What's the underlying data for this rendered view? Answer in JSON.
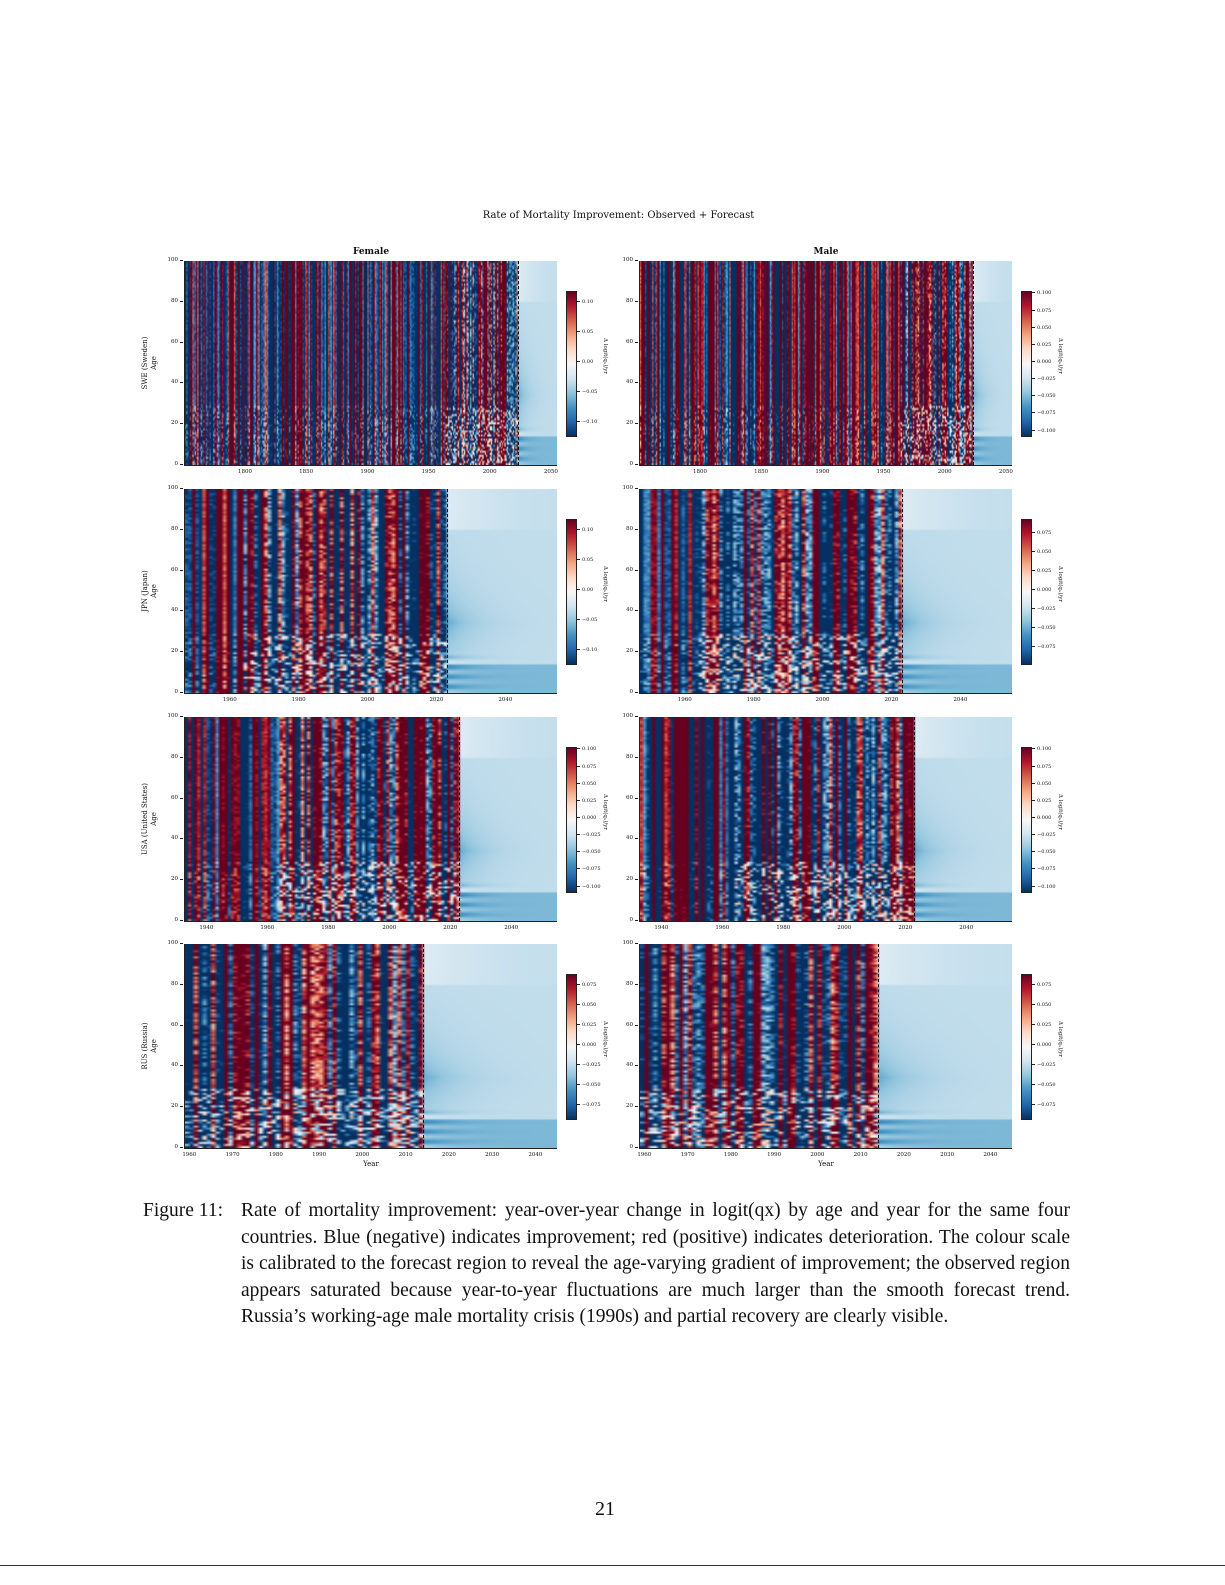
{
  "figure": {
    "suptitle": "Rate of Mortality Improvement: Observed + Forecast",
    "column_titles": [
      "Female",
      "Male"
    ],
    "x_axis_label": "Year",
    "colorbar_label": "Δ logit(qₓ)/yr"
  },
  "caption": {
    "label": "Figure 11:",
    "text": "Rate of mortality improvement: year-over-year change in logit(qx) by age and year for the same four countries. Blue (negative) indicates improvement; red (positive) indicates deterioration. The colour scale is calibrated to the forecast region to reveal the age-varying gradient of improvement; the observed region appears saturated because year-to-year fluctuations are much larger than the smooth forecast trend. Russia’s working-age male mortality crisis (1990s) and partial recovery are clearly visible."
  },
  "page_number": "21",
  "chart_data": [
    {
      "type": "heatmap",
      "row": "SWE (Sweden)",
      "sex": "Female",
      "ylabel": "SWE (Sweden)\nAge",
      "xlabel": "",
      "x_range": [
        1751,
        2055
      ],
      "y_range": [
        0,
        100
      ],
      "x_ticks": [
        1800,
        1850,
        1900,
        1950,
        2000,
        2050
      ],
      "y_ticks": [
        0,
        20,
        40,
        60,
        80,
        100
      ],
      "forecast_start": 2023,
      "colorbar_ticks": [
        "0.10",
        "0.05",
        "0.00",
        "−0.05",
        "−0.10"
      ],
      "colorbar_range": [
        -0.12,
        0.12
      ],
      "colormap": "RdBu_r"
    },
    {
      "type": "heatmap",
      "row": "SWE (Sweden)",
      "sex": "Male",
      "ylabel": "",
      "xlabel": "",
      "x_range": [
        1751,
        2055
      ],
      "y_range": [
        0,
        100
      ],
      "x_ticks": [
        1800,
        1850,
        1900,
        1950,
        2000,
        2050
      ],
      "y_ticks": [
        0,
        20,
        40,
        60,
        80,
        100
      ],
      "forecast_start": 2023,
      "colorbar_ticks": [
        "0.100",
        "0.075",
        "0.050",
        "0.025",
        "0.000",
        "−0.025",
        "−0.050",
        "−0.075",
        "−0.100"
      ],
      "colorbar_range": [
        -0.105,
        0.105
      ],
      "colormap": "RdBu_r"
    },
    {
      "type": "heatmap",
      "row": "JPN (Japan)",
      "sex": "Female",
      "ylabel": "JPN (Japan)\nAge",
      "xlabel": "",
      "x_range": [
        1947,
        2055
      ],
      "y_range": [
        0,
        100
      ],
      "x_ticks": [
        1960,
        1980,
        2000,
        2020,
        2040
      ],
      "y_ticks": [
        0,
        20,
        40,
        60,
        80,
        100
      ],
      "forecast_start": 2023,
      "colorbar_ticks": [
        "0.10",
        "0.05",
        "0.00",
        "−0.05",
        "−0.10"
      ],
      "colorbar_range": [
        -0.12,
        0.12
      ],
      "colormap": "RdBu_r"
    },
    {
      "type": "heatmap",
      "row": "JPN (Japan)",
      "sex": "Male",
      "ylabel": "",
      "xlabel": "",
      "x_range": [
        1947,
        2055
      ],
      "y_range": [
        0,
        100
      ],
      "x_ticks": [
        1960,
        1980,
        2000,
        2020,
        2040
      ],
      "y_ticks": [
        0,
        20,
        40,
        60,
        80,
        100
      ],
      "forecast_start": 2023,
      "colorbar_ticks": [
        "0.075",
        "0.050",
        "0.025",
        "0.000",
        "−0.025",
        "−0.050",
        "−0.075"
      ],
      "colorbar_range": [
        -0.095,
        0.095
      ],
      "colormap": "RdBu_r"
    },
    {
      "type": "heatmap",
      "row": "USA (United States)",
      "sex": "Female",
      "ylabel": "USA (United States)\nAge",
      "xlabel": "",
      "x_range": [
        1933,
        2055
      ],
      "y_range": [
        0,
        100
      ],
      "x_ticks": [
        1940,
        1960,
        1980,
        2000,
        2020,
        2040
      ],
      "y_ticks": [
        0,
        20,
        40,
        60,
        80,
        100
      ],
      "forecast_start": 2023,
      "colorbar_ticks": [
        "0.100",
        "0.075",
        "0.050",
        "0.025",
        "0.000",
        "−0.025",
        "−0.050",
        "−0.075",
        "−0.100"
      ],
      "colorbar_range": [
        -0.105,
        0.105
      ],
      "colormap": "RdBu_r"
    },
    {
      "type": "heatmap",
      "row": "USA (United States)",
      "sex": "Male",
      "ylabel": "",
      "xlabel": "",
      "x_range": [
        1933,
        2055
      ],
      "y_range": [
        0,
        100
      ],
      "x_ticks": [
        1940,
        1960,
        1980,
        2000,
        2020,
        2040
      ],
      "y_ticks": [
        0,
        20,
        40,
        60,
        80,
        100
      ],
      "forecast_start": 2023,
      "colorbar_ticks": [
        "0.100",
        "0.075",
        "0.050",
        "0.025",
        "0.000",
        "−0.025",
        "−0.050",
        "−0.075",
        "−0.100"
      ],
      "colorbar_range": [
        -0.105,
        0.105
      ],
      "colormap": "RdBu_r"
    },
    {
      "type": "heatmap",
      "row": "RUS (Russia)",
      "sex": "Female",
      "ylabel": "RUS (Russia)\nAge",
      "xlabel": "Year",
      "x_range": [
        1959,
        2045
      ],
      "y_range": [
        0,
        100
      ],
      "x_ticks": [
        1960,
        1970,
        1980,
        1990,
        2000,
        2010,
        2020,
        2030,
        2040
      ],
      "y_ticks": [
        0,
        20,
        40,
        60,
        80,
        100
      ],
      "forecast_start": 2014,
      "colorbar_ticks": [
        "0.075",
        "0.050",
        "0.025",
        "0.000",
        "−0.025",
        "−0.050",
        "−0.075"
      ],
      "colorbar_range": [
        -0.09,
        0.09
      ],
      "colormap": "RdBu_r"
    },
    {
      "type": "heatmap",
      "row": "RUS (Russia)",
      "sex": "Male",
      "ylabel": "",
      "xlabel": "Year",
      "x_range": [
        1959,
        2045
      ],
      "y_range": [
        0,
        100
      ],
      "x_ticks": [
        1960,
        1970,
        1980,
        1990,
        2000,
        2010,
        2020,
        2030,
        2040
      ],
      "y_ticks": [
        0,
        20,
        40,
        60,
        80,
        100
      ],
      "forecast_start": 2014,
      "colorbar_ticks": [
        "0.075",
        "0.050",
        "0.025",
        "0.000",
        "−0.025",
        "−0.050",
        "−0.075"
      ],
      "colorbar_range": [
        -0.09,
        0.09
      ],
      "colormap": "RdBu_r"
    }
  ]
}
